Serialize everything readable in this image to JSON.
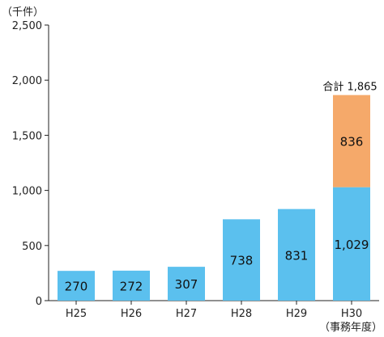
{
  "chart_data": {
    "type": "bar",
    "stacked": true,
    "y_unit_label": "（千件）",
    "x_unit_label": "（事務年度）",
    "categories": [
      "H25",
      "H26",
      "H27",
      "H28",
      "H29",
      "H30"
    ],
    "series": [
      {
        "values": [
          270,
          272,
          307,
          738,
          831,
          1029
        ],
        "color": "#5bc0ee"
      },
      {
        "values": [
          0,
          0,
          0,
          0,
          0,
          836
        ],
        "color": "#f5a96a"
      }
    ],
    "value_labels": {
      "s0": [
        "270",
        "272",
        "307",
        "738",
        "831",
        "1,029"
      ],
      "s1": [
        "",
        "",
        "",
        "",
        "",
        "836"
      ]
    },
    "total_annotation": {
      "category": "H30",
      "text": "合計 1,865",
      "value": 1865
    },
    "ylim": [
      0,
      2500
    ],
    "yticks": [
      0,
      500,
      1000,
      1500,
      2000,
      2500
    ],
    "ytick_labels": [
      "0",
      "500",
      "1,000",
      "1,500",
      "2,000",
      "2,500"
    ],
    "grid": false,
    "legend": "none"
  }
}
